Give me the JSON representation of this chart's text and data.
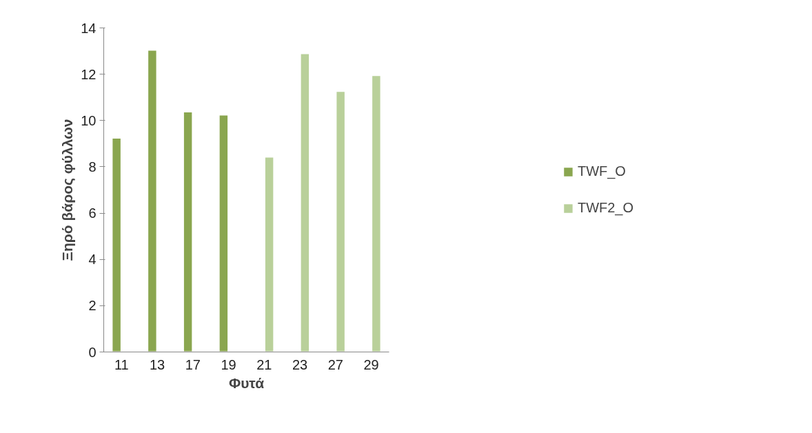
{
  "chart_data": {
    "type": "bar",
    "xlabel": "Φυτά",
    "ylabel": "Ξηρό βάρος φύλλων",
    "categories": [
      "11",
      "13",
      "17",
      "19",
      "21",
      "23",
      "27",
      "29"
    ],
    "series": [
      {
        "name": "TWF_O",
        "color": "#8aa64f",
        "values": [
          9.25,
          13.05,
          10.38,
          10.25,
          null,
          null,
          null,
          null
        ]
      },
      {
        "name": "TWF2_O",
        "color": "#b9d09a",
        "values": [
          null,
          null,
          null,
          null,
          8.43,
          12.9,
          11.27,
          11.95
        ]
      }
    ],
    "ylim": [
      0,
      14
    ],
    "yticks": [
      0,
      2,
      4,
      6,
      8,
      10,
      12,
      14
    ],
    "grid": false,
    "legend": "right"
  }
}
